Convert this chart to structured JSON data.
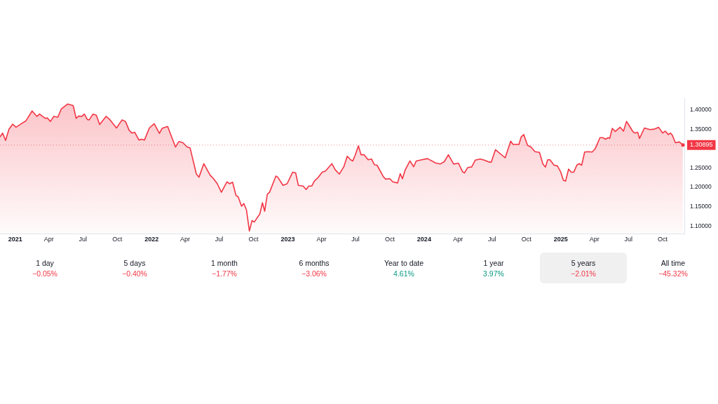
{
  "chart_data": [
    {
      "type": "area",
      "x": [
        "2020-11-21",
        "2020-11-28",
        "2020-12-06",
        "2020-12-15",
        "2020-12-25",
        "2021-01-03",
        "2021-01-20",
        "2021-01-29",
        "2021-02-15",
        "2021-02-28",
        "2021-03-07",
        "2021-03-22",
        "2021-03-28",
        "2021-04-05",
        "2021-04-14",
        "2021-04-25",
        "2021-05-04",
        "2021-05-21",
        "2021-06-05",
        "2021-06-13",
        "2021-06-20",
        "2021-06-28",
        "2021-07-05",
        "2021-07-13",
        "2021-07-18",
        "2021-07-28",
        "2021-08-06",
        "2021-08-15",
        "2021-09-01",
        "2021-09-10",
        "2021-09-29",
        "2021-10-14",
        "2021-10-23",
        "2021-11-02",
        "2021-11-09",
        "2021-11-17",
        "2021-11-28",
        "2021-12-05",
        "2021-12-13",
        "2021-12-26",
        "2022-01-08",
        "2022-01-22",
        "2022-01-29",
        "2022-02-13",
        "2022-03-06",
        "2022-03-15",
        "2022-03-26",
        "2022-04-06",
        "2022-04-14",
        "2022-05-01",
        "2022-05-08",
        "2022-05-21",
        "2022-06-07",
        "2022-06-16",
        "2022-06-26",
        "2022-07-07",
        "2022-07-22",
        "2022-07-29",
        "2022-08-06",
        "2022-08-15",
        "2022-08-21",
        "2022-08-30",
        "2022-09-05",
        "2022-09-12",
        "2022-09-20",
        "2022-09-27",
        "2022-10-03",
        "2022-10-18",
        "2022-10-25",
        "2022-10-31",
        "2022-11-07",
        "2022-11-13",
        "2022-11-30",
        "2022-12-05",
        "2022-12-19",
        "2022-12-30",
        "2023-01-14",
        "2023-01-22",
        "2023-01-29",
        "2023-02-11",
        "2023-02-19",
        "2023-02-26",
        "2023-03-06",
        "2023-03-13",
        "2023-03-22",
        "2023-04-03",
        "2023-04-12",
        "2023-04-29",
        "2023-05-08",
        "2023-05-19",
        "2023-05-31",
        "2023-06-09",
        "2023-06-18",
        "2023-06-24",
        "2023-06-30",
        "2023-07-09",
        "2023-07-16",
        "2023-07-24",
        "2023-08-04",
        "2023-08-13",
        "2023-08-21",
        "2023-08-28",
        "2023-09-14",
        "2023-09-20",
        "2023-10-01",
        "2023-10-09",
        "2023-10-22",
        "2023-10-29",
        "2023-11-04",
        "2023-11-11",
        "2023-11-24",
        "2023-12-04",
        "2023-12-11",
        "2023-12-26",
        "2024-01-10",
        "2024-01-22",
        "2024-01-31",
        "2024-02-13",
        "2024-02-24",
        "2024-03-06",
        "2024-03-20",
        "2024-04-02",
        "2024-04-13",
        "2024-04-18",
        "2024-04-26",
        "2024-05-02",
        "2024-05-07",
        "2024-05-17",
        "2024-05-30",
        "2024-06-10",
        "2024-06-23",
        "2024-06-29",
        "2024-07-10",
        "2024-08-05",
        "2024-08-20",
        "2024-08-26",
        "2024-09-11",
        "2024-09-17",
        "2024-09-24",
        "2024-10-04",
        "2024-10-13",
        "2024-10-24",
        "2024-11-05",
        "2024-11-14",
        "2024-11-21",
        "2024-11-27",
        "2024-12-03",
        "2024-12-14",
        "2024-12-23",
        "2025-01-01",
        "2025-01-08",
        "2025-01-14",
        "2025-01-22",
        "2025-01-29",
        "2025-02-05",
        "2025-02-13",
        "2025-02-19",
        "2025-02-26",
        "2025-03-06",
        "2025-03-15",
        "2025-03-26",
        "2025-04-03",
        "2025-04-16",
        "2025-04-23",
        "2025-05-01",
        "2025-05-08",
        "2025-05-12",
        "2025-05-19",
        "2025-05-27",
        "2025-06-09",
        "2025-06-18",
        "2025-06-26",
        "2025-07-01",
        "2025-07-13",
        "2025-07-18",
        "2025-07-26",
        "2025-07-31",
        "2025-08-13",
        "2025-08-28",
        "2025-09-08",
        "2025-09-20",
        "2025-10-01",
        "2025-10-08",
        "2025-10-16",
        "2025-10-22",
        "2025-10-27",
        "2025-11-04",
        "2025-11-15",
        "2025-11-24"
      ],
      "series": [
        {
          "color": "#f23645",
          "values": [
            1.33,
            1.34,
            1.321,
            1.35,
            1.363,
            1.355,
            1.366,
            1.371,
            1.397,
            1.383,
            1.389,
            1.378,
            1.379,
            1.37,
            1.383,
            1.381,
            1.402,
            1.415,
            1.411,
            1.378,
            1.384,
            1.383,
            1.389,
            1.375,
            1.374,
            1.389,
            1.386,
            1.362,
            1.383,
            1.376,
            1.353,
            1.374,
            1.37,
            1.347,
            1.34,
            1.342,
            1.322,
            1.324,
            1.322,
            1.353,
            1.364,
            1.339,
            1.352,
            1.357,
            1.304,
            1.318,
            1.315,
            1.304,
            1.302,
            1.234,
            1.226,
            1.261,
            1.231,
            1.222,
            1.209,
            1.187,
            1.214,
            1.209,
            1.213,
            1.179,
            1.175,
            1.151,
            1.158,
            1.142,
            1.087,
            1.114,
            1.11,
            1.131,
            1.16,
            1.138,
            1.182,
            1.187,
            1.229,
            1.226,
            1.205,
            1.209,
            1.239,
            1.237,
            1.205,
            1.203,
            1.194,
            1.203,
            1.203,
            1.216,
            1.224,
            1.239,
            1.242,
            1.261,
            1.245,
            1.234,
            1.253,
            1.28,
            1.271,
            1.268,
            1.282,
            1.307,
            1.284,
            1.284,
            1.271,
            1.273,
            1.258,
            1.257,
            1.227,
            1.221,
            1.222,
            1.214,
            1.211,
            1.235,
            1.222,
            1.244,
            1.268,
            1.253,
            1.268,
            1.271,
            1.274,
            1.268,
            1.263,
            1.26,
            1.266,
            1.284,
            1.26,
            1.262,
            1.24,
            1.237,
            1.25,
            1.252,
            1.252,
            1.27,
            1.273,
            1.27,
            1.265,
            1.265,
            1.297,
            1.276,
            1.319,
            1.311,
            1.311,
            1.33,
            1.336,
            1.308,
            1.304,
            1.292,
            1.29,
            1.26,
            1.252,
            1.271,
            1.271,
            1.257,
            1.255,
            1.239,
            1.218,
            1.216,
            1.247,
            1.239,
            1.239,
            1.257,
            1.261,
            1.257,
            1.291,
            1.292,
            1.291,
            1.299,
            1.328,
            1.328,
            1.324,
            1.328,
            1.326,
            1.352,
            1.344,
            1.355,
            1.345,
            1.37,
            1.363,
            1.344,
            1.34,
            1.342,
            1.326,
            1.353,
            1.349,
            1.35,
            1.355,
            1.34,
            1.345,
            1.336,
            1.34,
            1.334,
            1.315,
            1.317,
            1.30895
          ]
        }
      ],
      "xticks": [
        {
          "value": "2021",
          "label": "2021"
        },
        {
          "value": "2021-04",
          "label": "Apr"
        },
        {
          "value": "2021-07",
          "label": "Jul"
        },
        {
          "value": "2021-10",
          "label": "Oct"
        },
        {
          "value": "2022",
          "label": "2022"
        },
        {
          "value": "2022-04",
          "label": "Apr"
        },
        {
          "value": "2022-07",
          "label": "Jul"
        },
        {
          "value": "2022-10",
          "label": "Oct"
        },
        {
          "value": "2023",
          "label": "2023"
        },
        {
          "value": "2023-04",
          "label": "Apr"
        },
        {
          "value": "2023-07",
          "label": "Jul"
        },
        {
          "value": "2023-10",
          "label": "Oct"
        },
        {
          "value": "2024",
          "label": "2024"
        },
        {
          "value": "2024-04",
          "label": "Apr"
        },
        {
          "value": "2024-07",
          "label": "Jul"
        },
        {
          "value": "2024-10",
          "label": "Oct"
        },
        {
          "value": "2025",
          "label": "2025"
        },
        {
          "value": "2025-04",
          "label": "Apr"
        },
        {
          "value": "2025-07",
          "label": "Jul"
        },
        {
          "value": "2025-10",
          "label": "Oct"
        }
      ],
      "yticks": [
        {
          "value": 1.1,
          "label": "1.10000"
        },
        {
          "value": 1.15,
          "label": "1.15000"
        },
        {
          "value": 1.2,
          "label": "1.20000"
        },
        {
          "value": 1.25,
          "label": "1.25000"
        },
        {
          "value": 1.35,
          "label": "1.35000"
        },
        {
          "value": 1.4,
          "label": "1.40000"
        }
      ],
      "xlim": [
        "2020-11-21",
        "2025-11-28"
      ],
      "ylim": [
        1.08,
        1.43
      ],
      "ref_lines": [
        {
          "axis": "y",
          "value": 1.30895,
          "label": "1.30895",
          "color": "#f23645"
        }
      ],
      "grid": false,
      "legend": false,
      "marker": "none"
    },
    {
      "type": "other",
      "categories": [
        "1 day",
        "5 days",
        "1 month",
        "6 months",
        "Year to date",
        "1 year",
        "5 years",
        "All time"
      ],
      "value_labels": [
        "−0.05%",
        "−0.40%",
        "−1.77%",
        "−3.06%",
        "4.61%",
        "3.97%",
        "−2.01%",
        "−45.32%"
      ],
      "colors": [
        "#f23645",
        "#f23645",
        "#f23645",
        "#f23645",
        "#089981",
        "#089981",
        "#f23645",
        "#f23645"
      ]
    }
  ]
}
